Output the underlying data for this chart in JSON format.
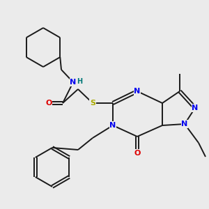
{
  "bg_color": "#ebebeb",
  "bond_color": "#1a1a1a",
  "N_color": "#0000ee",
  "O_color": "#dd0000",
  "S_color": "#aaaa00",
  "H_color": "#007777",
  "lw": 1.4,
  "dbl": 0.07,
  "fs": 8.0,
  "xlim": [
    0,
    10
  ],
  "ylim": [
    0,
    10
  ]
}
